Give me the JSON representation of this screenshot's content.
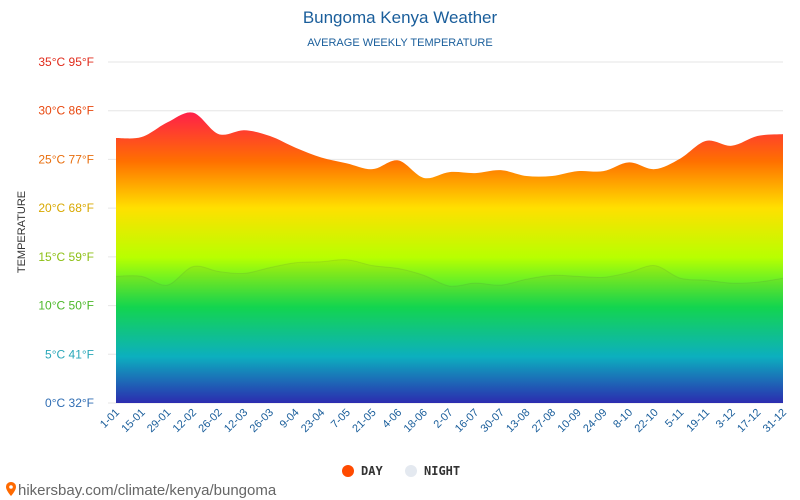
{
  "header": {
    "title": "Bungoma Kenya Weather",
    "subtitle": "AVERAGE WEEKLY TEMPERATURE"
  },
  "footer": {
    "source": "hikersbay.com/climate/kenya/bungoma"
  },
  "colors": {
    "title": "#1a5e9b",
    "day_marker": "#ff4a00",
    "night_marker": "#e4e9f0"
  },
  "chart_data": {
    "type": "area",
    "title": "Bungoma Kenya Weather",
    "subtitle": "AVERAGE WEEKLY TEMPERATURE",
    "ylabel": "TEMPERATURE",
    "xlabel": "",
    "ylim": [
      0,
      35
    ],
    "grid": true,
    "legend_position": "bottom-center",
    "y_ticks": [
      {
        "value": 0,
        "label": "0°C 32°F",
        "color": "#2f6db3"
      },
      {
        "value": 5,
        "label": "5°C 41°F",
        "color": "#2aa7b8"
      },
      {
        "value": 10,
        "label": "10°C 50°F",
        "color": "#4cb82a"
      },
      {
        "value": 15,
        "label": "15°C 59°F",
        "color": "#8cbf14"
      },
      {
        "value": 20,
        "label": "20°C 68°F",
        "color": "#d8a800"
      },
      {
        "value": 25,
        "label": "25°C 77°F",
        "color": "#e86f0f"
      },
      {
        "value": 30,
        "label": "30°C 86°F",
        "color": "#e8480f"
      },
      {
        "value": 35,
        "label": "35°C 95°F",
        "color": "#e02a1a"
      }
    ],
    "categories": [
      "1-01",
      "15-01",
      "29-01",
      "12-02",
      "26-02",
      "12-03",
      "26-03",
      "9-04",
      "23-04",
      "7-05",
      "21-05",
      "4-06",
      "18-06",
      "2-07",
      "16-07",
      "30-07",
      "13-08",
      "27-08",
      "10-09",
      "24-09",
      "8-10",
      "22-10",
      "5-11",
      "19-11",
      "3-12",
      "17-12",
      "31-12"
    ],
    "series": [
      {
        "name": "DAY",
        "color": "#ff4a00",
        "values": [
          27.2,
          27.3,
          28.8,
          29.8,
          27.6,
          28.0,
          27.4,
          26.2,
          25.2,
          24.6,
          24.0,
          24.9,
          23.1,
          23.7,
          23.6,
          23.9,
          23.3,
          23.3,
          23.8,
          23.8,
          24.7,
          24.0,
          25.1,
          26.9,
          26.4,
          27.4,
          27.6
        ]
      },
      {
        "name": "NIGHT",
        "color": "#e4e9f0",
        "values": [
          13.0,
          13.0,
          12.1,
          14.0,
          13.5,
          13.3,
          13.9,
          14.4,
          14.5,
          14.7,
          14.1,
          13.8,
          13.1,
          12.0,
          12.3,
          12.1,
          12.7,
          13.1,
          13.0,
          12.9,
          13.4,
          14.1,
          12.8,
          12.6,
          12.3,
          12.4,
          12.8
        ]
      }
    ]
  }
}
